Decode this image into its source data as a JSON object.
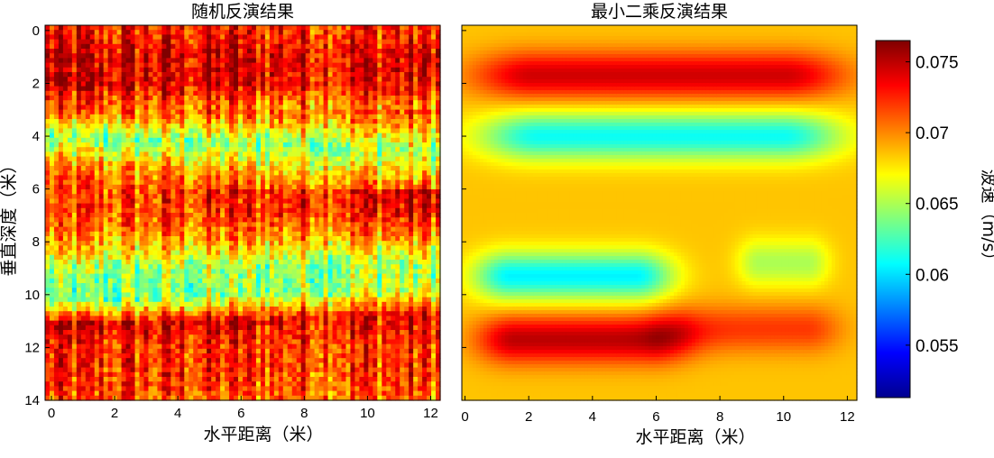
{
  "chart_data": [
    {
      "type": "heatmap",
      "title": "随机反演结果",
      "xlabel": "水平距离（米）",
      "ylabel": "垂直深度（米）",
      "xlim": [
        -0.2,
        12.3
      ],
      "ylim": [
        14,
        -0.2
      ],
      "x_ticks": [
        "0",
        "2",
        "4",
        "6",
        "8",
        "10",
        "12"
      ],
      "y_ticks": [
        "0",
        "2",
        "4",
        "6",
        "8",
        "10",
        "12",
        "14"
      ],
      "depth_profile": {
        "depth": [
          0,
          1,
          2,
          3,
          4,
          5,
          6,
          7,
          8,
          9,
          10,
          11,
          12,
          13,
          14
        ],
        "velocity_left": [
          0.0725,
          0.074,
          0.074,
          0.0705,
          0.0635,
          0.069,
          0.071,
          0.0705,
          0.068,
          0.064,
          0.0625,
          0.0745,
          0.0725,
          0.072,
          0.071
        ],
        "velocity_right": [
          0.0725,
          0.074,
          0.0735,
          0.0695,
          0.065,
          0.069,
          0.0745,
          0.0735,
          0.07,
          0.065,
          0.0665,
          0.0735,
          0.072,
          0.072,
          0.071
        ]
      },
      "texture": "vertical-streaks"
    },
    {
      "type": "heatmap",
      "title": "最小二乘反演结果",
      "xlabel": "水平距离（米）",
      "xlim": [
        -0.1,
        12.3
      ],
      "x_ticks": [
        "0",
        "2",
        "4",
        "6",
        "8",
        "10",
        "12"
      ],
      "background_velocity": 0.0685,
      "features": [
        {
          "kind": "high",
          "x": [
            0.9,
            11.3
          ],
          "depth_center": 1.7,
          "velocity": 0.0745
        },
        {
          "kind": "low",
          "x": [
            1.1,
            11.2
          ],
          "depth_center": 4.0,
          "velocity": 0.061
        },
        {
          "kind": "low",
          "x": [
            0.8,
            6.0
          ],
          "depth_center": 9.3,
          "velocity": 0.0605
        },
        {
          "kind": "high",
          "x": [
            0.9,
            6.5
          ],
          "depth_center": 11.7,
          "velocity": 0.075
        },
        {
          "kind": "high",
          "x": [
            6.5,
            11.3
          ],
          "depth_center": 11.3,
          "velocity": 0.072
        },
        {
          "kind": "low",
          "x": [
            9.0,
            11.0
          ],
          "depth_center": 8.8,
          "velocity": 0.065
        }
      ],
      "texture": "smooth"
    }
  ],
  "colorbar": {
    "label": "波速（m/s）",
    "ticks": [
      "0.055",
      "0.06",
      "0.065",
      "0.07",
      "0.075"
    ],
    "tick_values": [
      0.055,
      0.06,
      0.065,
      0.07,
      0.075
    ],
    "range": [
      0.0513,
      0.0765
    ],
    "colormap": "jet"
  }
}
